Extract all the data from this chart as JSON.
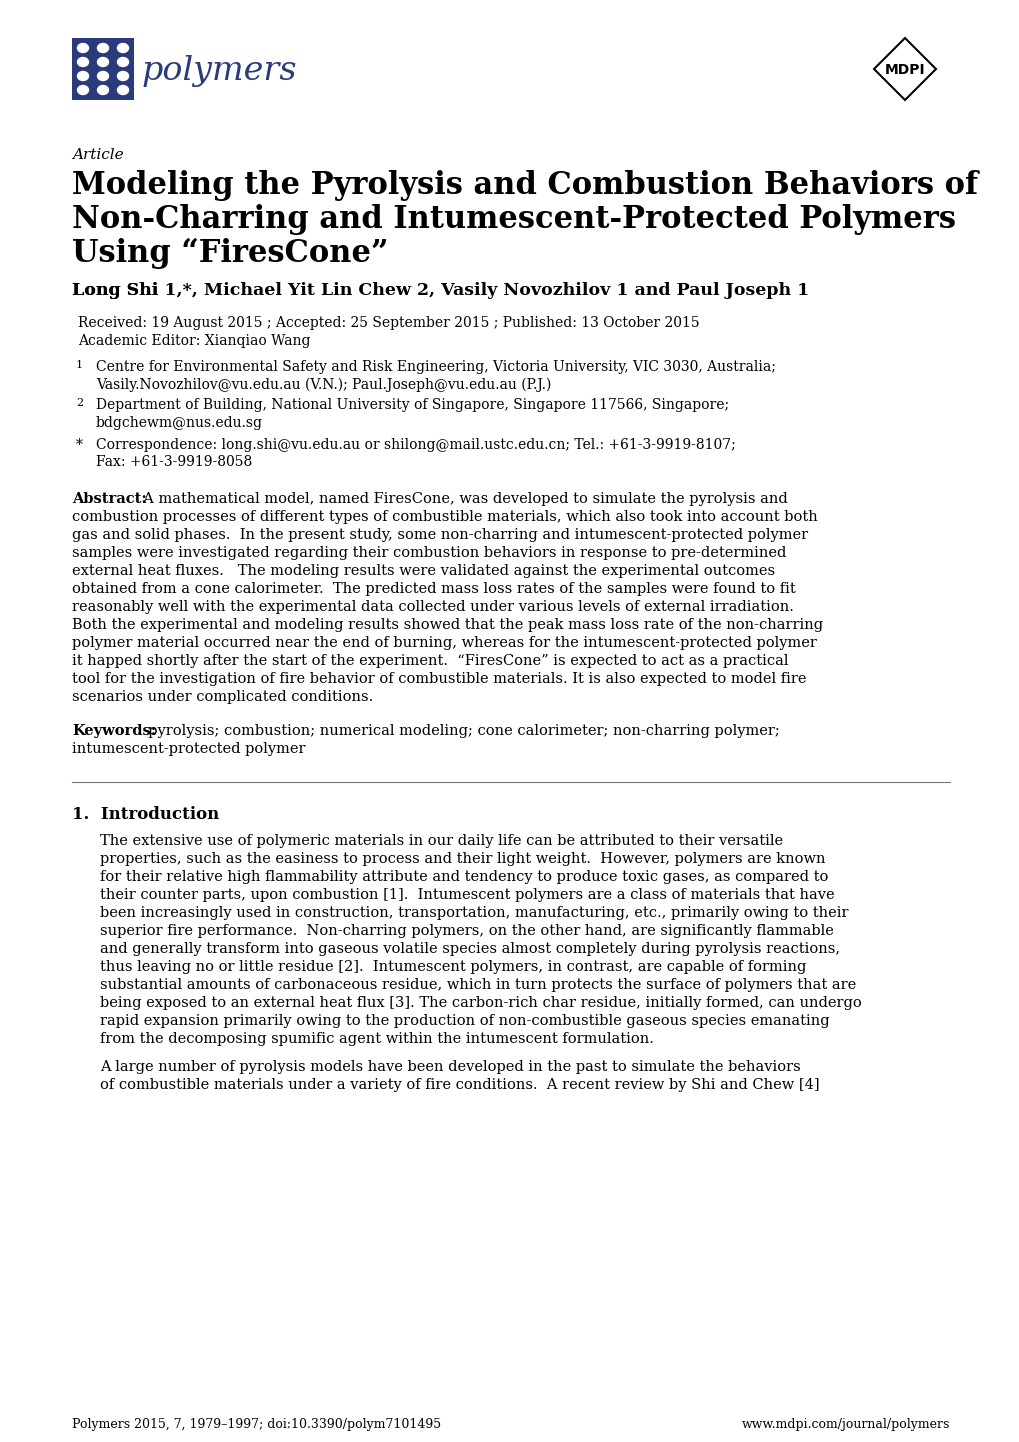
{
  "bg_color": "#ffffff",
  "logo_color": "#2B3A7A",
  "title_line1": "Modeling the Pyrolysis and Combustion Behaviors of",
  "title_line2": "Non-Charring and Intumescent-Protected Polymers",
  "title_line3": "Using “FiresCone”",
  "article_label": "Article",
  "received_line": "Received: 19 August 2015 ; Accepted: 25 September 2015 ; Published: 13 October 2015",
  "academic_editor": "Academic Editor: Xianqiao Wang",
  "affil1a": "Centre for Environmental Safety and Risk Engineering, Victoria University, VIC 3030, Australia;",
  "affil1b": "Vasily.Novozhilov@vu.edu.au (V.N.); Paul.Joseph@vu.edu.au (P.J.)",
  "affil2a": "Department of Building, National University of Singapore, Singapore 117566, Singapore;",
  "affil2b": "bdgchewm@nus.edu.sg",
  "affil3a": "Correspondence: long.shi@vu.edu.au or shilong@mail.ustc.edu.cn; Tel.: +61-3-9919-8107;",
  "affil3b": "Fax: +61-3-9919-8058",
  "abstract_lines": [
    "Abstract:  A mathematical model, named FiresCone, was developed to simulate the pyrolysis and",
    "combustion processes of different types of combustible materials, which also took into account both",
    "gas and solid phases.  In the present study, some non-charring and intumescent-protected polymer",
    "samples were investigated regarding their combustion behaviors in response to pre-determined",
    "external heat fluxes.   The modeling results were validated against the experimental outcomes",
    "obtained from a cone calorimeter.  The predicted mass loss rates of the samples were found to fit",
    "reasonably well with the experimental data collected under various levels of external irradiation.",
    "Both the experimental and modeling results showed that the peak mass loss rate of the non-charring",
    "polymer material occurred near the end of burning, whereas for the intumescent-protected polymer",
    "it happed shortly after the start of the experiment.  “FiresCone” is expected to act as a practical",
    "tool for the investigation of fire behavior of combustible materials. It is also expected to model fire",
    "scenarios under complicated conditions."
  ],
  "keywords_line1": "Keywords:  pyrolysis; combustion; numerical modeling; cone calorimeter; non-charring polymer;",
  "keywords_line2": "intumescent-protected polymer",
  "section1_title": "1.  Introduction",
  "intro1_lines": [
    "The extensive use of polymeric materials in our daily life can be attributed to their versatile",
    "properties, such as the easiness to process and their light weight.  However, polymers are known",
    "for their relative high flammability attribute and tendency to produce toxic gases, as compared to",
    "their counter parts, upon combustion [1].  Intumescent polymers are a class of materials that have",
    "been increasingly used in construction, transportation, manufacturing, etc., primarily owing to their",
    "superior fire performance.  Non-charring polymers, on the other hand, are significantly flammable",
    "and generally transform into gaseous volatile species almost completely during pyrolysis reactions,",
    "thus leaving no or little residue [2].  Intumescent polymers, in contrast, are capable of forming",
    "substantial amounts of carbonaceous residue, which in turn protects the surface of polymers that are",
    "being exposed to an external heat flux [3]. The carbon-rich char residue, initially formed, can undergo",
    "rapid expansion primarily owing to the production of non-combustible gaseous species emanating",
    "from the decomposing spumific agent within the intumescent formulation."
  ],
  "intro2_lines": [
    "A large number of pyrolysis models have been developed in the past to simulate the behaviors",
    "of combustible materials under a variety of fire conditions.  A recent review by Shi and Chew [4]"
  ],
  "footer_left": "Polymers 2015, 7, 1979–1997; doi:10.3390/polym7101495",
  "footer_right": "www.mdpi.com/journal/polymers"
}
